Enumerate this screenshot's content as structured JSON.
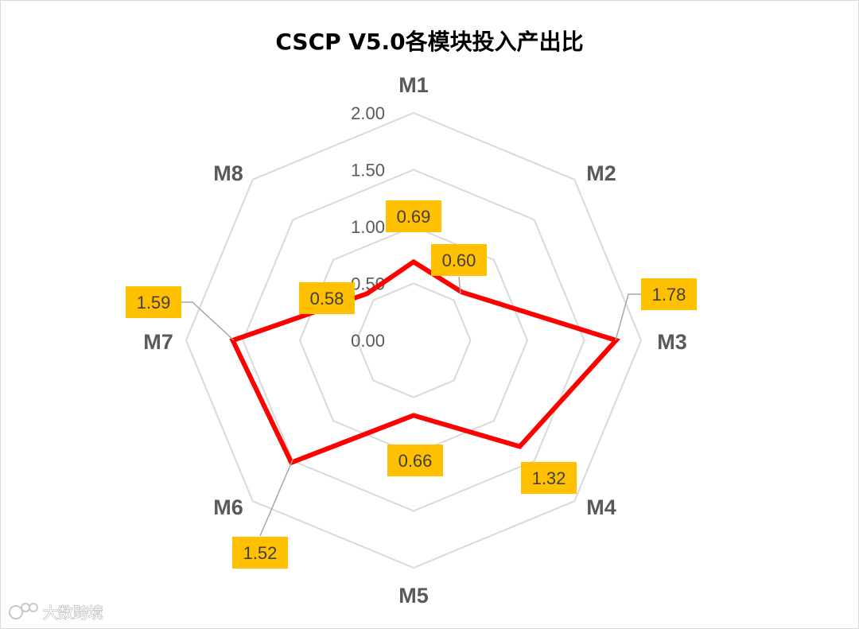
{
  "chart_data": {
    "type": "radar",
    "title": "CSCP V5.0各模块投入产出比",
    "categories": [
      "M1",
      "M2",
      "M3",
      "M4",
      "M5",
      "M6",
      "M7",
      "M8"
    ],
    "values": [
      0.69,
      0.6,
      1.78,
      1.32,
      0.66,
      1.52,
      1.59,
      0.58
    ],
    "value_labels": [
      "0.69",
      "0.60",
      "1.78",
      "1.32",
      "0.66",
      "1.52",
      "1.59",
      "0.58"
    ],
    "rlim": [
      0,
      2
    ],
    "ticks": [
      "0.00",
      "0.50",
      "1.00",
      "1.50",
      "2.00"
    ],
    "tick_values": [
      0,
      0.5,
      1,
      1.5,
      2
    ],
    "grid": true,
    "legend": "none"
  },
  "colors": {
    "series_line": "#ff0000",
    "grid": "#d9d9d9",
    "label_box": "#ffc000",
    "axis_text": "#595959",
    "leader_line": "#a6a6a6"
  },
  "watermark": {
    "text": "大数跨境",
    "icon": "logo-icon"
  }
}
